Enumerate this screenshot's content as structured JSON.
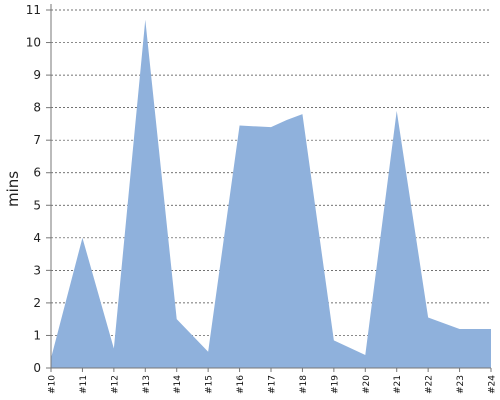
{
  "chart_data": {
    "type": "area",
    "title": "",
    "xlabel": "",
    "ylabel": "mins",
    "categories": [
      "#10",
      "#11",
      "#12",
      "#13",
      "#14",
      "#15",
      "#16",
      "#17",
      "#18",
      "#19",
      "#20",
      "#21",
      "#22",
      "#23",
      "#24"
    ],
    "points": [
      {
        "x": "#10",
        "y": 0.3
      },
      {
        "x": "#11",
        "y": 4.0
      },
      {
        "x": "#12",
        "y": 0.6
      },
      {
        "x": "#13",
        "y": 10.7
      },
      {
        "x": "#14",
        "y": 1.5
      },
      {
        "x": "#15",
        "y": 0.5
      },
      {
        "x": "#16",
        "y": 7.45
      },
      {
        "x": "#17",
        "y": 7.4
      },
      {
        "x": "#17.5",
        "y": 7.62
      },
      {
        "x": "#18",
        "y": 7.8
      },
      {
        "x": "#19",
        "y": 0.85
      },
      {
        "x": "#20",
        "y": 0.4
      },
      {
        "x": "#21",
        "y": 7.9
      },
      {
        "x": "#22",
        "y": 1.55
      },
      {
        "x": "#23",
        "y": 1.2
      },
      {
        "x": "#24",
        "y": 1.2
      }
    ],
    "ylim": [
      0,
      11
    ],
    "yticks": [
      0,
      1,
      2,
      3,
      4,
      5,
      6,
      7,
      8,
      9,
      10,
      11
    ],
    "grid": "horizontal dashed",
    "legend": "none",
    "colors": {
      "fill": "#8fb1dc",
      "grid": "#444444",
      "axis": "#777777"
    }
  }
}
